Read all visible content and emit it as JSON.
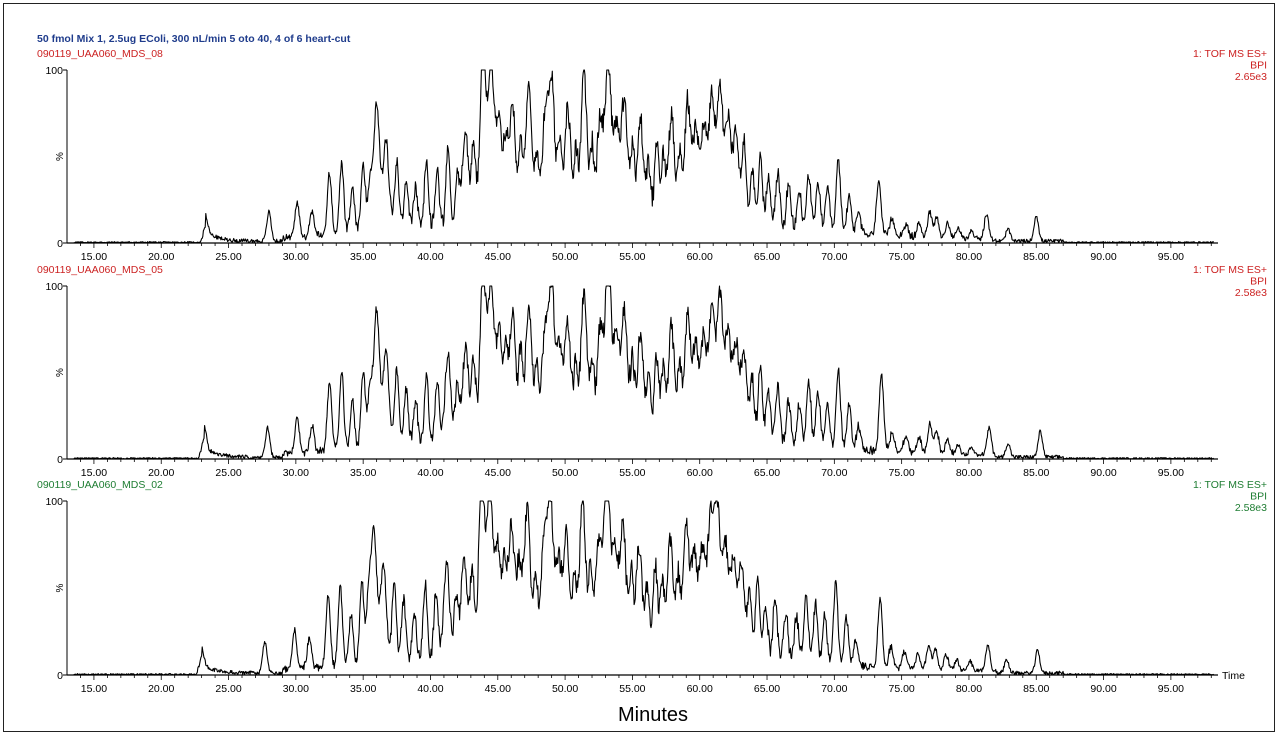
{
  "colors": {
    "title": "#1f3c8c",
    "red": "#cc2222",
    "green": "#1e7d32",
    "trace": "#000000",
    "axis": "#000000"
  },
  "chart_data": {
    "type": "line",
    "title": "50 fmol Mix 1, 2.5ug EColi, 300 nL/min 5 oto 40, 4 of 6 heart-cut",
    "xlabel": "Minutes",
    "x_unit_label": "Time",
    "xlim": [
      13.0,
      98.5
    ],
    "ylim": [
      0,
      100
    ],
    "xticks": [
      "15.00",
      "20.00",
      "25.00",
      "30.00",
      "35.00",
      "40.00",
      "45.00",
      "50.00",
      "55.00",
      "60.00",
      "65.00",
      "70.00",
      "75.00",
      "80.00",
      "85.00",
      "90.00",
      "95.00"
    ],
    "y_top_label": "100",
    "y_mid_label": "%",
    "y_zero_label": "0",
    "panels": [
      {
        "name": "090119_UAA060_MDS_08",
        "color": "red",
        "right_labels": [
          "1: TOF MS ES+",
          "BPI",
          "2.65e3"
        ],
        "peaks": [
          [
            23.3,
            9
          ],
          [
            28.0,
            17
          ],
          [
            30.1,
            20
          ],
          [
            31.2,
            15
          ],
          [
            32.5,
            36
          ],
          [
            33.4,
            41
          ],
          [
            34.2,
            26
          ],
          [
            35.0,
            40
          ],
          [
            35.5,
            28
          ],
          [
            36.0,
            75
          ],
          [
            36.7,
            52
          ],
          [
            37.5,
            40
          ],
          [
            38.2,
            30
          ],
          [
            38.9,
            24
          ],
          [
            39.7,
            38
          ],
          [
            40.5,
            34
          ],
          [
            41.3,
            45
          ],
          [
            42.0,
            30
          ],
          [
            42.6,
            54
          ],
          [
            43.2,
            46
          ],
          [
            43.9,
            100
          ],
          [
            44.5,
            92
          ],
          [
            45.1,
            60
          ],
          [
            45.6,
            45
          ],
          [
            46.1,
            70
          ],
          [
            46.7,
            48
          ],
          [
            47.3,
            78
          ],
          [
            47.9,
            40
          ],
          [
            48.5,
            58
          ],
          [
            49.0,
            83
          ],
          [
            49.6,
            50
          ],
          [
            50.2,
            65
          ],
          [
            50.8,
            38
          ],
          [
            51.4,
            85
          ],
          [
            52.0,
            42
          ],
          [
            52.6,
            60
          ],
          [
            53.2,
            90
          ],
          [
            53.8,
            55
          ],
          [
            54.4,
            70
          ],
          [
            55.0,
            42
          ],
          [
            55.6,
            58
          ],
          [
            56.2,
            32
          ],
          [
            56.8,
            45
          ],
          [
            57.3,
            38
          ],
          [
            57.9,
            62
          ],
          [
            58.5,
            40
          ],
          [
            59.1,
            70
          ],
          [
            59.7,
            52
          ],
          [
            60.3,
            56
          ],
          [
            60.9,
            72
          ],
          [
            61.5,
            78
          ],
          [
            62.1,
            60
          ],
          [
            62.7,
            52
          ],
          [
            63.3,
            50
          ],
          [
            63.9,
            34
          ],
          [
            64.5,
            40
          ],
          [
            65.1,
            28
          ],
          [
            65.8,
            32
          ],
          [
            66.6,
            25
          ],
          [
            67.4,
            22
          ],
          [
            68.1,
            33
          ],
          [
            68.8,
            28
          ],
          [
            69.5,
            24
          ],
          [
            70.3,
            42
          ],
          [
            71.1,
            22
          ],
          [
            71.8,
            12
          ],
          [
            73.3,
            33
          ],
          [
            74.3,
            10
          ],
          [
            75.3,
            7
          ],
          [
            76.3,
            8
          ],
          [
            77.1,
            15
          ],
          [
            77.6,
            12
          ],
          [
            78.4,
            8
          ],
          [
            79.2,
            6
          ],
          [
            80.2,
            5
          ],
          [
            81.3,
            14
          ],
          [
            82.9,
            7
          ],
          [
            85.0,
            15
          ],
          [
            92.5,
            3
          ],
          [
            95.5,
            2
          ]
        ]
      },
      {
        "name": "090119_UAA060_MDS_05",
        "color": "red",
        "right_labels": [
          "1: TOF MS ES+",
          "BPI",
          "2.58e3"
        ],
        "peaks": [
          [
            23.2,
            12
          ],
          [
            27.9,
            17
          ],
          [
            30.1,
            20
          ],
          [
            31.2,
            15
          ],
          [
            32.5,
            41
          ],
          [
            33.4,
            45
          ],
          [
            34.2,
            28
          ],
          [
            35.0,
            46
          ],
          [
            35.5,
            32
          ],
          [
            36.0,
            80
          ],
          [
            36.7,
            55
          ],
          [
            37.5,
            44
          ],
          [
            38.2,
            34
          ],
          [
            38.9,
            26
          ],
          [
            39.7,
            40
          ],
          [
            40.5,
            36
          ],
          [
            41.3,
            52
          ],
          [
            42.0,
            33
          ],
          [
            42.6,
            55
          ],
          [
            43.2,
            48
          ],
          [
            43.9,
            97
          ],
          [
            44.5,
            90
          ],
          [
            45.1,
            62
          ],
          [
            45.6,
            48
          ],
          [
            46.1,
            72
          ],
          [
            46.7,
            50
          ],
          [
            47.3,
            80
          ],
          [
            47.9,
            42
          ],
          [
            48.5,
            60
          ],
          [
            49.0,
            85
          ],
          [
            49.6,
            52
          ],
          [
            50.2,
            67
          ],
          [
            50.8,
            40
          ],
          [
            51.4,
            86
          ],
          [
            52.0,
            45
          ],
          [
            52.6,
            62
          ],
          [
            53.2,
            100
          ],
          [
            53.8,
            58
          ],
          [
            54.4,
            72
          ],
          [
            55.0,
            44
          ],
          [
            55.6,
            60
          ],
          [
            56.2,
            35
          ],
          [
            56.8,
            48
          ],
          [
            57.3,
            40
          ],
          [
            57.9,
            64
          ],
          [
            58.5,
            42
          ],
          [
            59.1,
            72
          ],
          [
            59.7,
            54
          ],
          [
            60.3,
            58
          ],
          [
            60.9,
            74
          ],
          [
            61.5,
            83
          ],
          [
            62.1,
            62
          ],
          [
            62.7,
            55
          ],
          [
            63.3,
            52
          ],
          [
            63.9,
            36
          ],
          [
            64.5,
            43
          ],
          [
            65.1,
            30
          ],
          [
            65.8,
            35
          ],
          [
            66.6,
            27
          ],
          [
            67.4,
            24
          ],
          [
            68.1,
            38
          ],
          [
            68.8,
            32
          ],
          [
            69.5,
            26
          ],
          [
            70.3,
            45
          ],
          [
            71.1,
            25
          ],
          [
            71.8,
            14
          ],
          [
            73.5,
            44
          ],
          [
            74.3,
            12
          ],
          [
            75.3,
            10
          ],
          [
            76.3,
            9
          ],
          [
            77.1,
            17
          ],
          [
            77.6,
            13
          ],
          [
            78.4,
            9
          ],
          [
            79.2,
            6
          ],
          [
            80.2,
            5
          ],
          [
            81.5,
            16
          ],
          [
            82.9,
            8
          ],
          [
            85.3,
            15
          ],
          [
            92.5,
            3
          ],
          [
            95.5,
            4
          ]
        ]
      },
      {
        "name": "090119_UAA060_MDS_02",
        "color": "green",
        "right_labels": [
          "1: TOF MS ES+",
          "BPI",
          "2.58e3"
        ],
        "peaks": [
          [
            23.0,
            9
          ],
          [
            27.7,
            18
          ],
          [
            29.9,
            22
          ],
          [
            31.0,
            17
          ],
          [
            32.4,
            42
          ],
          [
            33.3,
            47
          ],
          [
            34.1,
            30
          ],
          [
            34.9,
            48
          ],
          [
            35.4,
            34
          ],
          [
            35.8,
            76
          ],
          [
            36.5,
            56
          ],
          [
            37.3,
            46
          ],
          [
            38.0,
            36
          ],
          [
            38.8,
            28
          ],
          [
            39.6,
            44
          ],
          [
            40.4,
            38
          ],
          [
            41.2,
            55
          ],
          [
            41.9,
            35
          ],
          [
            42.5,
            57
          ],
          [
            43.1,
            50
          ],
          [
            43.8,
            100
          ],
          [
            44.4,
            95
          ],
          [
            45.0,
            64
          ],
          [
            45.5,
            50
          ],
          [
            46.0,
            74
          ],
          [
            46.6,
            52
          ],
          [
            47.2,
            82
          ],
          [
            47.8,
            44
          ],
          [
            48.4,
            62
          ],
          [
            48.9,
            88
          ],
          [
            49.5,
            54
          ],
          [
            50.1,
            69
          ],
          [
            50.7,
            42
          ],
          [
            51.3,
            89
          ],
          [
            51.9,
            47
          ],
          [
            52.5,
            64
          ],
          [
            53.1,
            100
          ],
          [
            53.7,
            60
          ],
          [
            54.3,
            74
          ],
          [
            54.9,
            46
          ],
          [
            55.5,
            62
          ],
          [
            56.1,
            37
          ],
          [
            56.7,
            50
          ],
          [
            57.2,
            42
          ],
          [
            57.8,
            66
          ],
          [
            58.4,
            44
          ],
          [
            59.0,
            74
          ],
          [
            59.6,
            56
          ],
          [
            60.2,
            60
          ],
          [
            60.8,
            76
          ],
          [
            61.3,
            85
          ],
          [
            61.9,
            64
          ],
          [
            62.5,
            57
          ],
          [
            63.1,
            54
          ],
          [
            63.7,
            38
          ],
          [
            64.3,
            45
          ],
          [
            64.9,
            32
          ],
          [
            65.6,
            37
          ],
          [
            66.4,
            29
          ],
          [
            67.2,
            26
          ],
          [
            67.9,
            40
          ],
          [
            68.6,
            34
          ],
          [
            69.3,
            28
          ],
          [
            70.1,
            47
          ],
          [
            70.9,
            27
          ],
          [
            71.6,
            15
          ],
          [
            73.4,
            40
          ],
          [
            74.2,
            12
          ],
          [
            75.2,
            9
          ],
          [
            76.2,
            8
          ],
          [
            77.0,
            14
          ],
          [
            77.5,
            12
          ],
          [
            78.3,
            9
          ],
          [
            79.1,
            6
          ],
          [
            80.1,
            5
          ],
          [
            81.4,
            15
          ],
          [
            82.8,
            8
          ],
          [
            85.1,
            13
          ],
          [
            92.5,
            3
          ],
          [
            95.5,
            4
          ]
        ]
      }
    ]
  }
}
